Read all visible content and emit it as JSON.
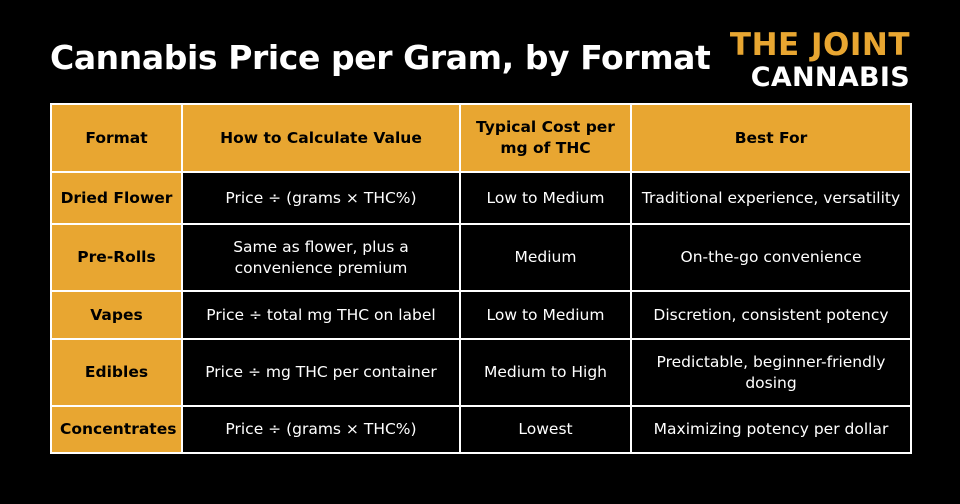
{
  "title": "Cannabis Price per Gram, by Format",
  "logo": {
    "line1": "THE JOINT",
    "line2": "CANNABIS"
  },
  "colors": {
    "accent": "#e8a631",
    "background": "#000000",
    "text": "#ffffff"
  },
  "table": {
    "headers": [
      "Format",
      "How to Calculate Value",
      "Typical Cost per mg of THC",
      "Best For"
    ],
    "rows": [
      [
        "Dried Flower",
        "Price ÷ (grams × THC%)",
        "Low to Medium",
        "Traditional experience, versatility"
      ],
      [
        "Pre-Rolls",
        "Same as flower, plus a convenience premium",
        "Medium",
        "On-the-go convenience"
      ],
      [
        "Vapes",
        "Price ÷ total mg THC on label",
        "Low to Medium",
        "Discretion, consistent potency"
      ],
      [
        "Edibles",
        "Price ÷ mg THC per container",
        "Medium to High",
        "Predictable, beginner-friendly dosing"
      ],
      [
        "Concentrates",
        "Price ÷ (grams × THC%)",
        "Lowest",
        "Maximizing potency per dollar"
      ]
    ]
  }
}
